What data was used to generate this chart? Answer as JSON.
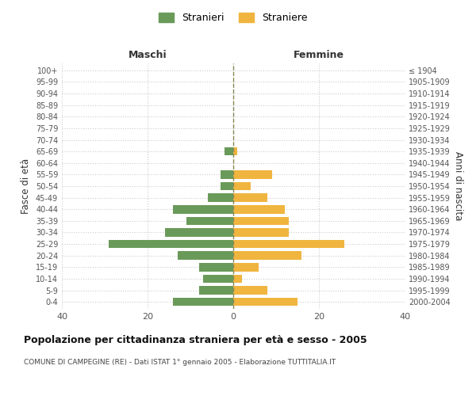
{
  "age_groups": [
    "0-4",
    "5-9",
    "10-14",
    "15-19",
    "20-24",
    "25-29",
    "30-34",
    "35-39",
    "40-44",
    "45-49",
    "50-54",
    "55-59",
    "60-64",
    "65-69",
    "70-74",
    "75-79",
    "80-84",
    "85-89",
    "90-94",
    "95-99",
    "100+"
  ],
  "birth_years": [
    "2000-2004",
    "1995-1999",
    "1990-1994",
    "1985-1989",
    "1980-1984",
    "1975-1979",
    "1970-1974",
    "1965-1969",
    "1960-1964",
    "1955-1959",
    "1950-1954",
    "1945-1949",
    "1940-1944",
    "1935-1939",
    "1930-1934",
    "1925-1929",
    "1920-1924",
    "1915-1919",
    "1910-1914",
    "1905-1909",
    "≤ 1904"
  ],
  "maschi": [
    14,
    8,
    7,
    8,
    13,
    29,
    16,
    11,
    14,
    6,
    3,
    3,
    0,
    2,
    0,
    0,
    0,
    0,
    0,
    0,
    0
  ],
  "femmine": [
    15,
    8,
    2,
    6,
    16,
    26,
    13,
    13,
    12,
    8,
    4,
    9,
    0,
    1,
    0,
    0,
    0,
    0,
    0,
    0,
    0
  ],
  "color_maschi": "#6a9a5a",
  "color_femmine": "#f0b53f",
  "title": "Popolazione per cittadinanza straniera per età e sesso - 2005",
  "subtitle": "COMUNE DI CAMPEGINE (RE) - Dati ISTAT 1° gennaio 2005 - Elaborazione TUTTITALIA.IT",
  "xlabel_left": "Maschi",
  "xlabel_right": "Femmine",
  "ylabel_left": "Fasce di età",
  "ylabel_right": "Anni di nascita",
  "legend_maschi": "Stranieri",
  "legend_femmine": "Straniere",
  "xlim": 40,
  "background_color": "#ffffff",
  "grid_color": "#cccccc"
}
